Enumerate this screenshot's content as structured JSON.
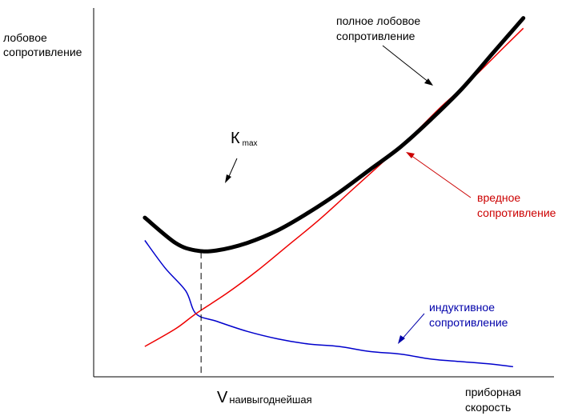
{
  "chart_data": {
    "type": "line",
    "ylabel": [
      "лобовое",
      "сопротивление"
    ],
    "xlabel": [
      "приборная",
      "скорость"
    ],
    "grid": false,
    "series": [
      {
        "key": "total",
        "name": [
          "полное лобовое",
          "сопротивление"
        ],
        "color": "#000000",
        "x": [
          0.5,
          0.8,
          1.0,
          1.2,
          1.5,
          1.8,
          2.1,
          2.4,
          2.7,
          3.0,
          3.3,
          3.6,
          3.9,
          4.2
        ],
        "y": [
          6.3,
          5.3,
          5.0,
          5.0,
          5.3,
          5.8,
          6.5,
          7.3,
          8.2,
          9.1,
          10.2,
          11.4,
          12.8,
          14.2
        ]
      },
      {
        "key": "parasitic",
        "name": [
          "вредное",
          "сопротивление"
        ],
        "color": "#ee0000",
        "x": [
          0.5,
          0.8,
          1.0,
          1.3,
          1.6,
          1.9,
          2.2,
          2.5,
          2.8,
          3.1,
          3.4,
          3.7,
          4.0,
          4.2
        ],
        "y": [
          1.2,
          1.9,
          2.5,
          3.3,
          4.2,
          5.2,
          6.2,
          7.3,
          8.4,
          9.5,
          10.7,
          11.8,
          13.0,
          13.8
        ]
      },
      {
        "key": "induced",
        "name": [
          "индуктивное",
          "сопротивление"
        ],
        "color": "#0000cc",
        "x": [
          0.5,
          0.7,
          0.9,
          1.0,
          1.2,
          1.5,
          1.8,
          2.1,
          2.4,
          2.7,
          3.0,
          3.3,
          3.6,
          3.9,
          4.1
        ],
        "y": [
          5.4,
          4.3,
          3.4,
          2.5,
          2.2,
          1.8,
          1.5,
          1.3,
          1.2,
          1.0,
          0.9,
          0.7,
          0.6,
          0.5,
          0.4
        ]
      }
    ],
    "annotations": {
      "kmax": {
        "main": "К",
        "sub": "max",
        "x": 1.05,
        "y": 5.0
      },
      "vbest": {
        "main": "V",
        "sub": "наивыгоднейшая",
        "x": 1.05
      }
    },
    "xlim": [
      0,
      4.5
    ],
    "ylim": [
      0,
      14.6
    ]
  }
}
